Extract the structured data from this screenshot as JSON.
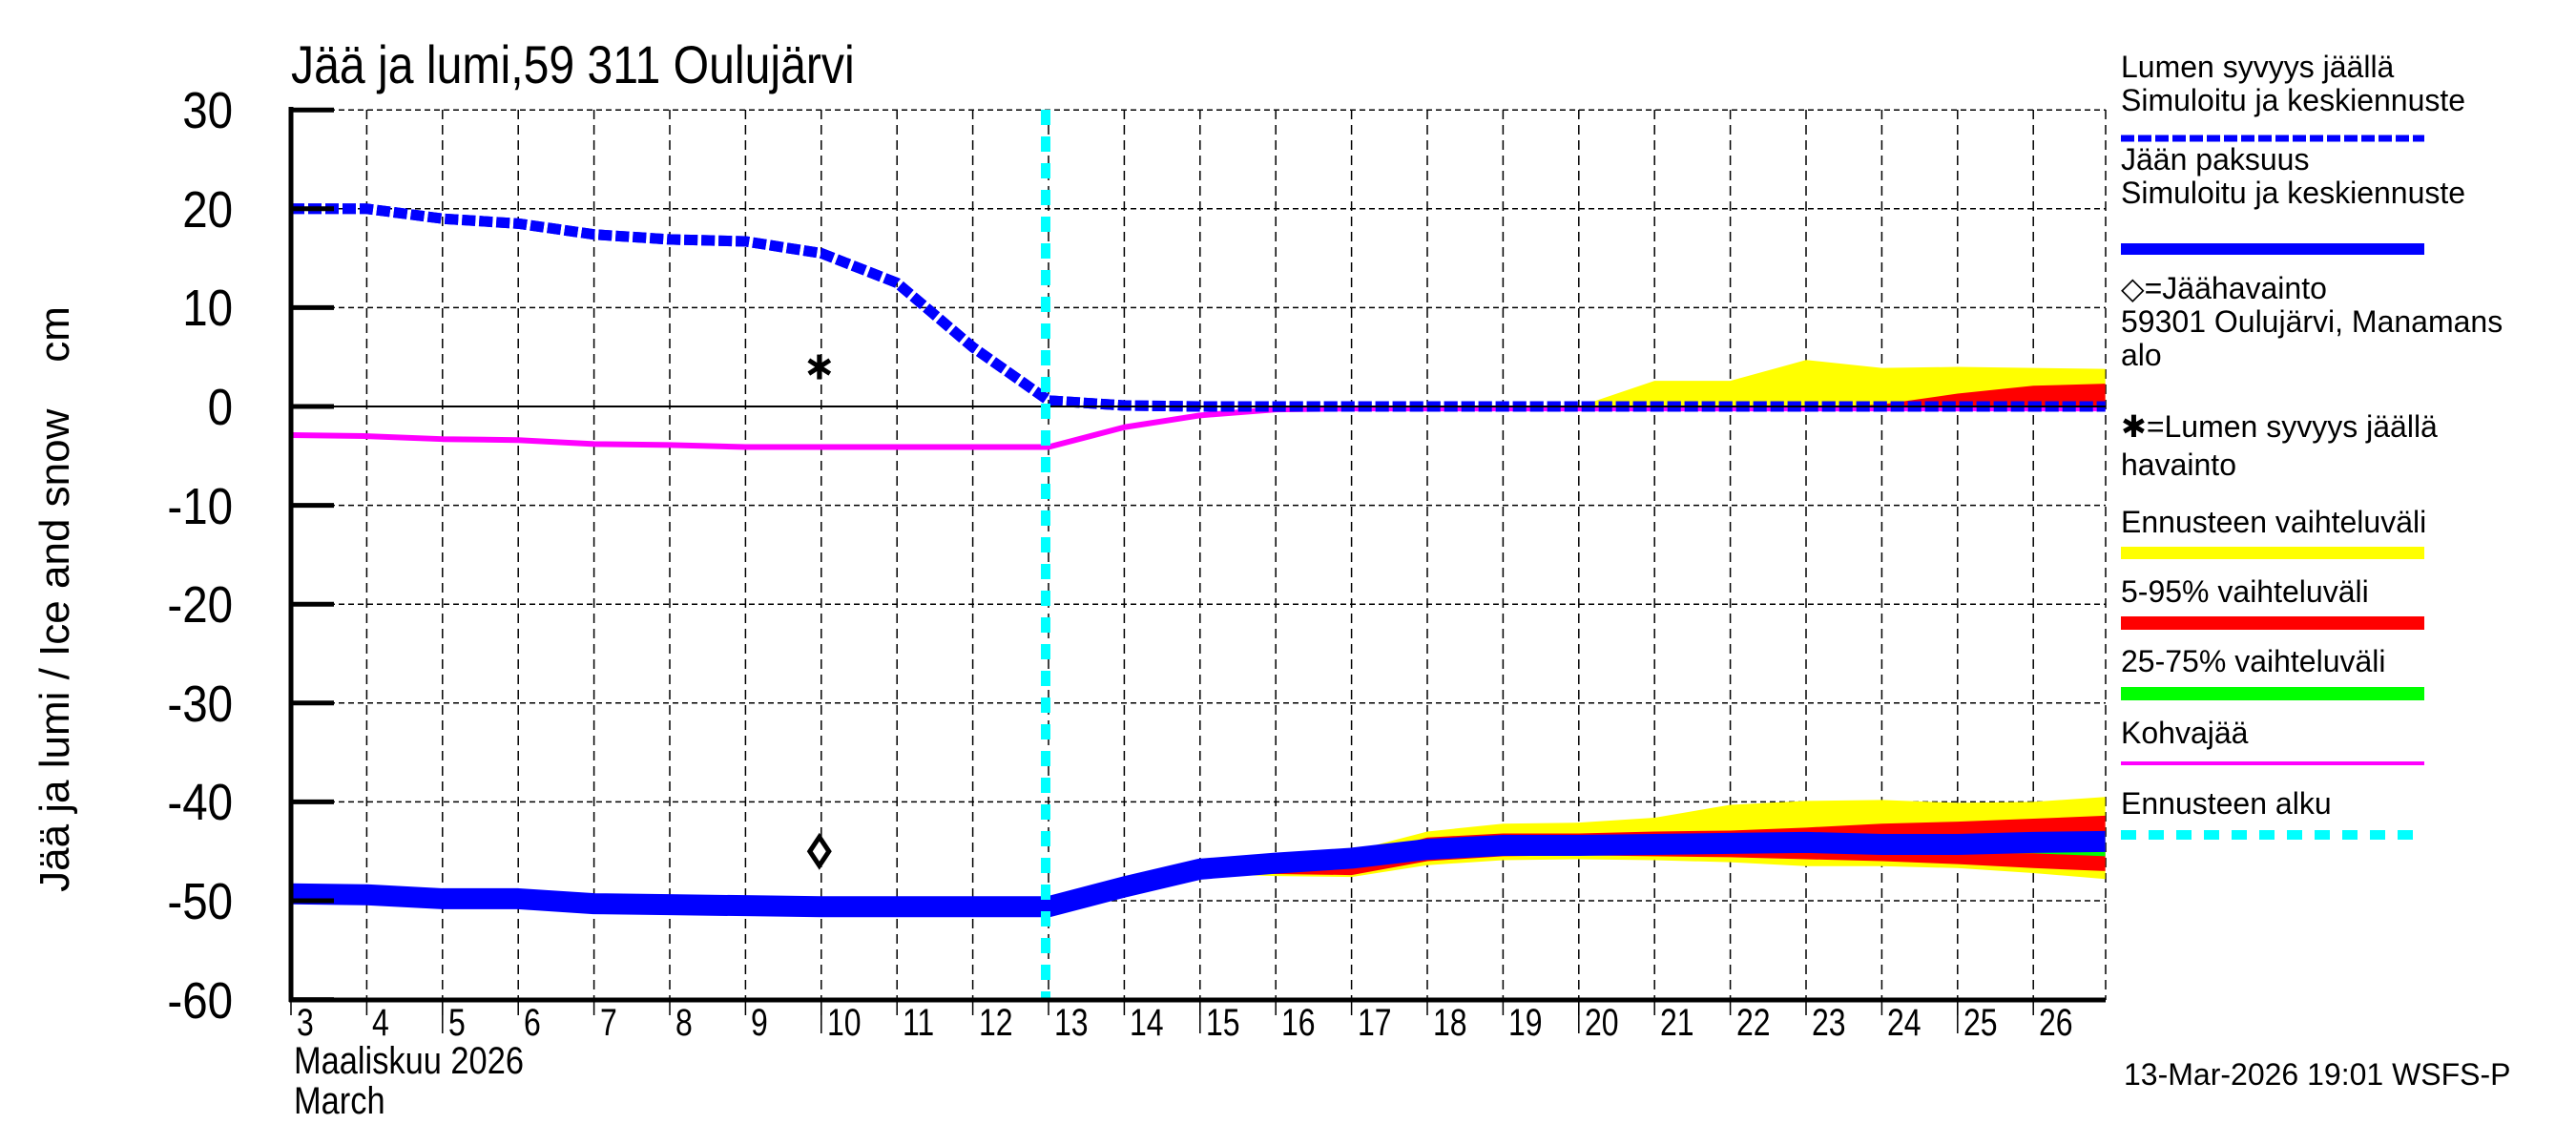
{
  "title": "Jää ja lumi,59 311 Oulujärvi",
  "y_axis_label": "Jää ja lumi / Ice and snow    cm",
  "x_axis": {
    "month_fi": "Maaliskuu 2026",
    "month_en": "March"
  },
  "timestamp": "13-Mar-2026 19:01 WSFS-P",
  "colors": {
    "snow_line": "#0000ff",
    "ice_line": "#0000ff",
    "forecast_range": "#ffff00",
    "p5_95": "#ff0000",
    "p25_75": "#00ff00",
    "slush_ice": "#ff00ff",
    "forecast_start": "#00ffff",
    "grid": "#000000"
  },
  "legend": [
    {
      "label": "Lumen syvyys jäällä",
      "label2": "Simuloitu ja keskiennuste",
      "style": "dashed-thick",
      "color": "#0000ff"
    },
    {
      "label": "Jään paksuus",
      "label2": "Simuloitu ja keskiennuste",
      "style": "solid-thick",
      "color": "#0000ff"
    },
    {
      "label": "◇=Jäähavainto",
      "label2": "59301 Oulujärvi, Manamans",
      "label3": "alo",
      "style": "marker-diamond"
    },
    {
      "label": "✱=Lumen syvyys jäällä",
      "label2": "havainto",
      "style": "marker-star"
    },
    {
      "label": "Ennusteen vaihteluväli",
      "style": "band",
      "color": "#ffff00"
    },
    {
      "label": "5-95% vaihteluväli",
      "style": "band",
      "color": "#ff0000"
    },
    {
      "label": "25-75% vaihteluväli",
      "style": "band",
      "color": "#00ff00"
    },
    {
      "label": "Kohvajää",
      "style": "line",
      "color": "#ff00ff"
    },
    {
      "label": "Ennusteen alku",
      "style": "dashed",
      "color": "#00ffff"
    }
  ],
  "chart_data": {
    "type": "line",
    "title": "Jää ja lumi,59 311 Oulujärvi",
    "xlabel": "Maaliskuu 2026 / March",
    "ylabel": "Jää ja lumi / Ice and snow    cm",
    "xlim": [
      3,
      26.95
    ],
    "ylim": [
      -60,
      30
    ],
    "x_ticks": [
      3,
      4,
      5,
      6,
      7,
      8,
      9,
      10,
      11,
      12,
      13,
      14,
      15,
      16,
      17,
      18,
      19,
      20,
      21,
      22,
      23,
      24,
      25,
      26
    ],
    "y_ticks": [
      30,
      20,
      10,
      0,
      -10,
      -20,
      -30,
      -40,
      -50,
      -60
    ],
    "grid": true,
    "forecast_start_day": 13,
    "series": [
      {
        "name": "Lumen syvyys jäällä (simuloitu ja keskiennuste)",
        "style": "dashed-thick",
        "color": "#0000ff",
        "x": [
          3,
          4,
          5,
          6,
          7,
          8,
          9,
          10,
          11,
          12,
          13,
          14,
          15,
          16,
          17,
          18,
          19,
          20,
          21,
          22,
          23,
          24,
          25,
          26,
          26.95
        ],
        "y": [
          20.0,
          20.0,
          19.0,
          18.5,
          17.4,
          16.9,
          16.7,
          15.5,
          12.5,
          6.0,
          0.6,
          0.1,
          0,
          0,
          0,
          0,
          0,
          0,
          0,
          0,
          0,
          0,
          0,
          0,
          0
        ]
      },
      {
        "name": "Jään paksuus (simuloitu ja keskiennuste)",
        "style": "solid-thick",
        "color": "#0000ff",
        "x": [
          3,
          4,
          5,
          6,
          7,
          8,
          9,
          10,
          11,
          12,
          13,
          14,
          15,
          16,
          17,
          18,
          19,
          20,
          21,
          22,
          23,
          24,
          25,
          26,
          26.95
        ],
        "y": [
          -49.3,
          -49.4,
          -49.8,
          -49.8,
          -50.3,
          -50.4,
          -50.5,
          -50.6,
          -50.6,
          -50.6,
          -50.6,
          -48.6,
          -46.8,
          -46.2,
          -45.7,
          -44.8,
          -44.4,
          -44.4,
          -44.3,
          -44.2,
          -44.1,
          -44.3,
          -44.3,
          -44.1,
          -44.0
        ]
      },
      {
        "name": "Kohvajää",
        "style": "line",
        "color": "#ff00ff",
        "x": [
          3,
          4,
          5,
          6,
          7,
          8,
          9,
          10,
          11,
          12,
          13,
          14,
          15,
          16,
          17,
          18,
          19,
          20,
          21,
          22,
          23,
          24,
          25,
          26,
          26.95
        ],
        "y": [
          -2.9,
          -3.0,
          -3.3,
          -3.4,
          -3.8,
          -3.9,
          -4.1,
          -4.1,
          -4.1,
          -4.1,
          -4.1,
          -2.1,
          -0.9,
          -0.3,
          -0.2,
          -0.2,
          -0.2,
          -0.2,
          -0.2,
          -0.2,
          -0.2,
          -0.2,
          -0.2,
          -0.2,
          -0.2
        ]
      }
    ],
    "bands": [
      {
        "name": "Ennusteen vaihteluväli (lumi)",
        "color": "#ffff00",
        "x": [
          20,
          21,
          22,
          23,
          24,
          25,
          26,
          26.95
        ],
        "upper": [
          0,
          2.6,
          2.6,
          4.7,
          3.9,
          4.0,
          3.9,
          3.8
        ],
        "lower": [
          0,
          0,
          0,
          0,
          0,
          0,
          0,
          0
        ]
      },
      {
        "name": "5-95% vaihteluväli (lumi)",
        "color": "#ff0000",
        "x": [
          23.5,
          24,
          25,
          26,
          26.95
        ],
        "upper": [
          0,
          0.2,
          1.3,
          2.1,
          2.3
        ],
        "lower": [
          0,
          0,
          0,
          0,
          0
        ]
      },
      {
        "name": "Ennusteen vaihteluväli (jää)",
        "color": "#ffff00",
        "x": [
          13,
          14,
          15,
          16,
          17,
          18,
          19,
          20,
          21,
          22,
          23,
          24,
          25,
          26,
          26.95
        ],
        "upper": [
          -50.6,
          -48.3,
          -46.3,
          -45.6,
          -45.0,
          -43.0,
          -42.2,
          -42.1,
          -41.6,
          -40.3,
          -39.9,
          -39.8,
          -40.1,
          -40.0,
          -39.5
        ],
        "lower": [
          -50.6,
          -48.8,
          -47.3,
          -47.5,
          -47.6,
          -46.4,
          -45.9,
          -45.8,
          -45.9,
          -46.1,
          -46.5,
          -46.5,
          -46.7,
          -47.2,
          -47.8
        ]
      },
      {
        "name": "5-95% vaihteluväli (jää)",
        "color": "#ff0000",
        "x": [
          13,
          14,
          15,
          16,
          17,
          18,
          19,
          20,
          21,
          22,
          23,
          24,
          25,
          26,
          26.95
        ],
        "upper": [
          -50.6,
          -48.4,
          -46.5,
          -46.0,
          -45.6,
          -43.6,
          -43.2,
          -43.2,
          -43.0,
          -42.9,
          -42.6,
          -42.2,
          -42.0,
          -41.7,
          -41.4
        ],
        "lower": [
          -50.6,
          -48.7,
          -47.2,
          -47.3,
          -47.4,
          -46.0,
          -45.5,
          -45.4,
          -45.5,
          -45.6,
          -45.8,
          -46.0,
          -46.3,
          -46.7,
          -47.0
        ]
      },
      {
        "name": "25-75% vaihteluväli (jää)",
        "color": "#00ff00",
        "x": [
          13,
          14,
          15,
          16,
          17,
          18,
          19,
          20,
          21,
          22,
          23,
          24,
          25,
          26,
          26.95
        ],
        "upper": [
          -50.6,
          -48.5,
          -46.7,
          -46.1,
          -45.6,
          -44.5,
          -44.1,
          -44.0,
          -43.9,
          -43.8,
          -43.6,
          -43.7,
          -43.5,
          -43.4,
          -43.3
        ],
        "lower": [
          -50.6,
          -48.6,
          -46.9,
          -46.3,
          -45.8,
          -45.0,
          -44.6,
          -44.7,
          -44.7,
          -44.7,
          -45.0,
          -45.1,
          -45.2,
          -45.2,
          -45.5
        ]
      }
    ],
    "observations": [
      {
        "name": "Jäähavainto",
        "marker": "diamond",
        "x": 10,
        "y": -45.0
      },
      {
        "name": "Lumen syvyys jäällä havainto",
        "marker": "star",
        "x": 10,
        "y": 4.0
      }
    ]
  }
}
